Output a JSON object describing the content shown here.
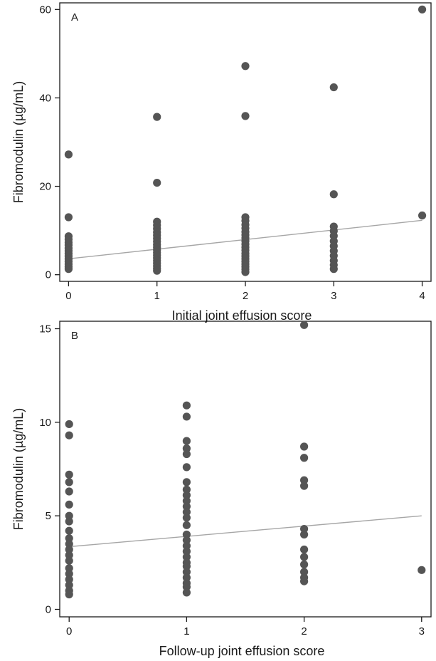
{
  "colors": {
    "point": "#555555",
    "fit_line": "#a6a6a6",
    "axes": "#1a1a1a"
  },
  "chart_data": [
    {
      "type": "scatter",
      "panel_label": "A",
      "xlabel": "Initial joint effusion score",
      "ylabel": "Fibromodulin (µg/mL)",
      "xlim": [
        -0.1,
        4.1
      ],
      "ylim": [
        -1.5,
        61.5
      ],
      "xticks": [
        0,
        1,
        2,
        3,
        4
      ],
      "yticks": [
        0,
        20,
        40,
        60
      ],
      "grid": false,
      "points": [
        [
          0,
          27.2
        ],
        [
          0,
          13
        ],
        [
          0,
          8.7
        ],
        [
          0,
          8
        ],
        [
          0,
          7.3
        ],
        [
          0,
          6.7
        ],
        [
          0,
          6
        ],
        [
          0,
          5.4
        ],
        [
          0,
          4.8
        ],
        [
          0,
          4.2
        ],
        [
          0,
          3.6
        ],
        [
          0,
          3
        ],
        [
          0,
          2.4
        ],
        [
          0,
          1.8
        ],
        [
          0,
          1.3
        ],
        [
          1,
          35.7
        ],
        [
          1,
          20.8
        ],
        [
          1,
          12
        ],
        [
          1,
          11.2
        ],
        [
          1,
          10.4
        ],
        [
          1,
          9.6
        ],
        [
          1,
          8.9
        ],
        [
          1,
          8.2
        ],
        [
          1,
          7.5
        ],
        [
          1,
          6.8
        ],
        [
          1,
          6.2
        ],
        [
          1,
          5.6
        ],
        [
          1,
          5
        ],
        [
          1,
          4.4
        ],
        [
          1,
          3.8
        ],
        [
          1,
          3.2
        ],
        [
          1,
          2.6
        ],
        [
          1,
          2
        ],
        [
          1,
          1.4
        ],
        [
          1,
          0.9
        ],
        [
          2,
          47.2
        ],
        [
          2,
          35.9
        ],
        [
          2,
          13
        ],
        [
          2,
          12.2
        ],
        [
          2,
          11.3
        ],
        [
          2,
          10.5
        ],
        [
          2,
          9.7
        ],
        [
          2,
          9
        ],
        [
          2,
          8.3
        ],
        [
          2,
          7.6
        ],
        [
          2,
          6.9
        ],
        [
          2,
          6.2
        ],
        [
          2,
          5.5
        ],
        [
          2,
          4.8
        ],
        [
          2,
          4.2
        ],
        [
          2,
          3.6
        ],
        [
          2,
          3
        ],
        [
          2,
          2.4
        ],
        [
          2,
          1.8
        ],
        [
          2,
          1.2
        ],
        [
          2,
          0.6
        ],
        [
          3,
          42.4
        ],
        [
          3,
          18.2
        ],
        [
          3,
          10.9
        ],
        [
          3,
          9.9
        ],
        [
          3,
          8.8
        ],
        [
          3,
          7.6
        ],
        [
          3,
          6.5
        ],
        [
          3,
          5.4
        ],
        [
          3,
          4.3
        ],
        [
          3,
          3.2
        ],
        [
          3,
          2.2
        ],
        [
          3,
          1.3
        ],
        [
          4,
          60
        ],
        [
          4,
          13.4
        ]
      ],
      "fit_line": {
        "x": [
          0,
          4
        ],
        "y": [
          3.6,
          12.3
        ]
      }
    },
    {
      "type": "scatter",
      "panel_label": "B",
      "xlabel": "Follow-up joint effusion score",
      "ylabel": "Fibromodulin (µg/mL)",
      "xlim": [
        -0.08,
        3.08
      ],
      "ylim": [
        -0.4,
        15.4
      ],
      "xticks": [
        0,
        1,
        2,
        3
      ],
      "yticks": [
        0,
        5,
        10,
        15
      ],
      "grid": false,
      "points": [
        [
          0,
          9.9
        ],
        [
          0,
          9.3
        ],
        [
          0,
          7.2
        ],
        [
          0,
          6.8
        ],
        [
          0,
          6.3
        ],
        [
          0,
          5.6
        ],
        [
          0,
          5
        ],
        [
          0,
          4.7
        ],
        [
          0,
          4.2
        ],
        [
          0,
          3.8
        ],
        [
          0,
          3.5
        ],
        [
          0,
          3.2
        ],
        [
          0,
          2.9
        ],
        [
          0,
          2.6
        ],
        [
          0,
          2.2
        ],
        [
          0,
          1.9
        ],
        [
          0,
          1.6
        ],
        [
          0,
          1.3
        ],
        [
          0,
          1
        ],
        [
          0,
          0.8
        ],
        [
          1,
          10.9
        ],
        [
          1,
          10.3
        ],
        [
          1,
          9
        ],
        [
          1,
          8.6
        ],
        [
          1,
          8.3
        ],
        [
          1,
          7.6
        ],
        [
          1,
          6.8
        ],
        [
          1,
          6.4
        ],
        [
          1,
          6.1
        ],
        [
          1,
          5.8
        ],
        [
          1,
          5.5
        ],
        [
          1,
          5.2
        ],
        [
          1,
          4.9
        ],
        [
          1,
          4.5
        ],
        [
          1,
          4
        ],
        [
          1,
          3.7
        ],
        [
          1,
          3.4
        ],
        [
          1,
          3.1
        ],
        [
          1,
          2.8
        ],
        [
          1,
          2.5
        ],
        [
          1,
          2.3
        ],
        [
          1,
          2
        ],
        [
          1,
          1.7
        ],
        [
          1,
          1.4
        ],
        [
          1,
          1.2
        ],
        [
          1,
          0.9
        ],
        [
          2,
          15.2
        ],
        [
          2,
          8.7
        ],
        [
          2,
          8.1
        ],
        [
          2,
          6.9
        ],
        [
          2,
          6.6
        ],
        [
          2,
          4.3
        ],
        [
          2,
          4
        ],
        [
          2,
          3.2
        ],
        [
          2,
          2.8
        ],
        [
          2,
          2.4
        ],
        [
          2,
          2
        ],
        [
          2,
          1.7
        ],
        [
          2,
          1.5
        ],
        [
          3,
          2.1
        ]
      ],
      "fit_line": {
        "x": [
          0,
          3
        ],
        "y": [
          3.35,
          5.0
        ]
      }
    }
  ]
}
